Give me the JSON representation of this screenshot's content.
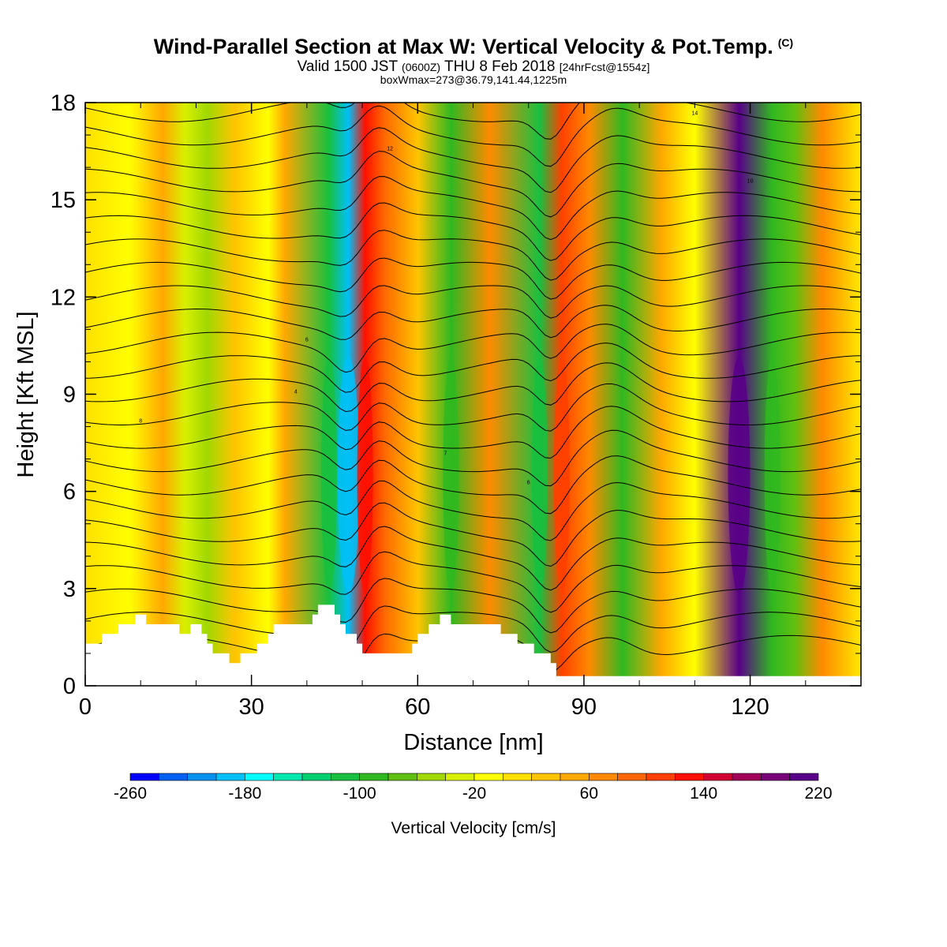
{
  "chart_data": {
    "type": "heatmap",
    "title": "Wind-Parallel Section at Max W: Vertical Velocity & Pot.Temp.",
    "title_mark": "(C)",
    "subtitle_main_1": "Valid 1500 JST",
    "subtitle_small_1": "(0600Z)",
    "subtitle_main_2": "THU 8 Feb 2018",
    "subtitle_small_2": "[24hrFcst@1554z]",
    "subtitle2": "boxWmax=273@36.79,141.44,1225m",
    "xlabel": "Distance [nm]",
    "ylabel": "Height [Kft MSL]",
    "xlim": [
      0,
      140
    ],
    "ylim": [
      0,
      18
    ],
    "xticks": [
      "0",
      "30",
      "60",
      "90",
      "120"
    ],
    "yticks": [
      "0",
      "3",
      "6",
      "9",
      "12",
      "15",
      "18"
    ],
    "colorbar": {
      "label": "Vertical Velocity [cm/s]",
      "tick_labels": [
        "-260",
        "-180",
        "-100",
        "-20",
        "60",
        "140",
        "220"
      ],
      "range": [
        -260,
        220
      ],
      "colors": [
        "#0000ff",
        "#0060f0",
        "#0090f0",
        "#00c0f8",
        "#00ffff",
        "#00e8b0",
        "#00d070",
        "#18c040",
        "#30b820",
        "#60c010",
        "#a0d800",
        "#d8f000",
        "#ffff00",
        "#ffe000",
        "#ffc400",
        "#ffa800",
        "#ff8a00",
        "#ff6800",
        "#ff4000",
        "#ff1000",
        "#d00030",
        "#a00058",
        "#780078",
        "#580088"
      ]
    },
    "w_bands": [
      {
        "x": 8,
        "w": -10
      },
      {
        "x": 14,
        "w": 40
      },
      {
        "x": 18,
        "w": -40
      },
      {
        "x": 22,
        "w": -60
      },
      {
        "x": 27,
        "w": 30
      },
      {
        "x": 33,
        "w": -20
      },
      {
        "x": 36,
        "w": 50
      },
      {
        "x": 44,
        "w": -110
      },
      {
        "x": 47.5,
        "w": -200
      },
      {
        "x": 50.5,
        "w": 130
      },
      {
        "x": 54,
        "w": 90
      },
      {
        "x": 60,
        "w": 20
      },
      {
        "x": 66,
        "w": -100
      },
      {
        "x": 73,
        "w": 60
      },
      {
        "x": 82,
        "w": -120
      },
      {
        "x": 86,
        "w": 110
      },
      {
        "x": 91,
        "w": 60
      },
      {
        "x": 97,
        "w": -90
      },
      {
        "x": 104,
        "w": 40
      },
      {
        "x": 110,
        "w": -20
      },
      {
        "x": 118,
        "w": 230
      },
      {
        "x": 124,
        "w": -100
      },
      {
        "x": 128,
        "w": -70
      },
      {
        "x": 133,
        "w": 70
      }
    ],
    "theta_contours": [
      {
        "level": "8",
        "start_kft": 8.2
      },
      {
        "level": "6",
        "start_kft": 6.3
      },
      {
        "level": "7",
        "start_kft": 7.2
      },
      {
        "level": "4",
        "start_kft": 9.1
      },
      {
        "level": "6",
        "start_kft": 10.7
      },
      {
        "level": "12",
        "start_kft": 16.6
      },
      {
        "level": "10",
        "start_kft": 15.6
      },
      {
        "level": "14",
        "start_kft": 17.7
      }
    ],
    "terrain_kft": [
      [
        0,
        1.3
      ],
      [
        3,
        1.3
      ],
      [
        3,
        1.6
      ],
      [
        6,
        1.6
      ],
      [
        6,
        1.9
      ],
      [
        9,
        1.9
      ],
      [
        9,
        2.2
      ],
      [
        11,
        2.2
      ],
      [
        11,
        1.9
      ],
      [
        17,
        1.9
      ],
      [
        17,
        1.6
      ],
      [
        19,
        1.6
      ],
      [
        19,
        1.9
      ],
      [
        21,
        1.9
      ],
      [
        21,
        1.6
      ],
      [
        22,
        1.6
      ],
      [
        22,
        1.3
      ],
      [
        23,
        1.3
      ],
      [
        23,
        1.0
      ],
      [
        26,
        1.0
      ],
      [
        26,
        0.7
      ],
      [
        28,
        0.7
      ],
      [
        28,
        1.0
      ],
      [
        31,
        1.0
      ],
      [
        31,
        1.3
      ],
      [
        33,
        1.3
      ],
      [
        33,
        1.6
      ],
      [
        34,
        1.6
      ],
      [
        34,
        1.9
      ],
      [
        41,
        1.9
      ],
      [
        41,
        2.2
      ],
      [
        42,
        2.2
      ],
      [
        42,
        2.5
      ],
      [
        45,
        2.5
      ],
      [
        45,
        2.2
      ],
      [
        46,
        2.2
      ],
      [
        46,
        1.9
      ],
      [
        47,
        1.9
      ],
      [
        47,
        1.6
      ],
      [
        49,
        1.6
      ],
      [
        49,
        1.3
      ],
      [
        50,
        1.3
      ],
      [
        50,
        1.0
      ],
      [
        59,
        1.0
      ],
      [
        59,
        1.3
      ],
      [
        60,
        1.3
      ],
      [
        60,
        1.6
      ],
      [
        62,
        1.6
      ],
      [
        62,
        1.9
      ],
      [
        64,
        1.9
      ],
      [
        64,
        2.2
      ],
      [
        66,
        2.2
      ],
      [
        66,
        1.9
      ],
      [
        75,
        1.9
      ],
      [
        75,
        1.6
      ],
      [
        78,
        1.6
      ],
      [
        78,
        1.3
      ],
      [
        81,
        1.3
      ],
      [
        81,
        1.0
      ],
      [
        84,
        1.0
      ],
      [
        84,
        0.7
      ],
      [
        85,
        0.7
      ],
      [
        85,
        0.3
      ],
      [
        140,
        0.3
      ]
    ]
  }
}
